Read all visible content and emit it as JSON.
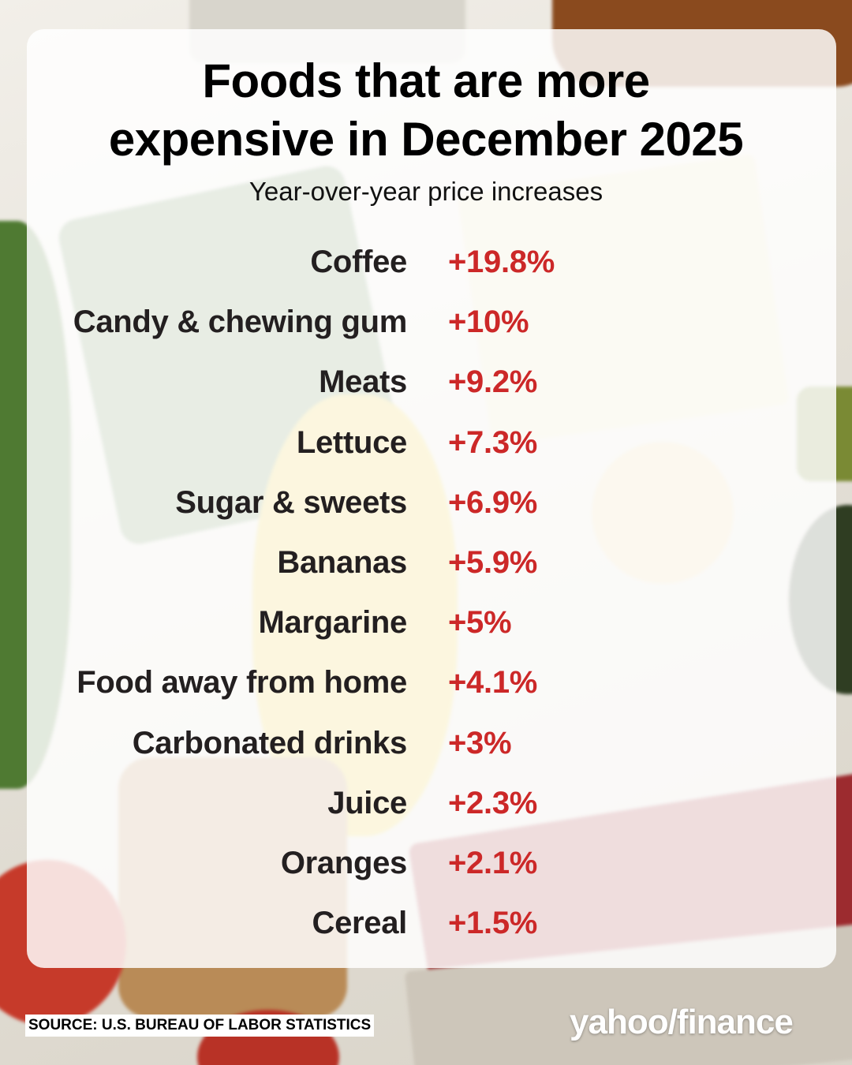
{
  "chart_data": {
    "type": "table",
    "title_line1": "Foods that are more",
    "title_line2": "expensive in December 2025",
    "subtitle": "Year-over-year price increases",
    "value_color": "#cc2828",
    "label_color": "#231f20",
    "rows": [
      {
        "category": "Coffee",
        "value": 19.8,
        "label": "+19.8%"
      },
      {
        "category": "Candy & chewing gum",
        "value": 10,
        "label": "+10%"
      },
      {
        "category": "Meats",
        "value": 9.2,
        "label": "+9.2%"
      },
      {
        "category": "Lettuce",
        "value": 7.3,
        "label": "+7.3%"
      },
      {
        "category": "Sugar & sweets",
        "value": 6.9,
        "label": "+6.9%"
      },
      {
        "category": "Bananas",
        "value": 5.9,
        "label": "+5.9%"
      },
      {
        "category": "Margarine",
        "value": 5,
        "label": "+5%"
      },
      {
        "category": "Food away from home",
        "value": 4.1,
        "label": "+4.1%"
      },
      {
        "category": "Carbonated drinks",
        "value": 3,
        "label": "+3%"
      },
      {
        "category": "Juice",
        "value": 2.3,
        "label": "+2.3%"
      },
      {
        "category": "Oranges",
        "value": 2.1,
        "label": "+2.1%"
      },
      {
        "category": "Cereal",
        "value": 1.5,
        "label": "+1.5%"
      }
    ]
  },
  "footer": {
    "source": "SOURCE: U.S. BUREAU OF LABOR STATISTICS",
    "logo": "yahoo/finance"
  }
}
